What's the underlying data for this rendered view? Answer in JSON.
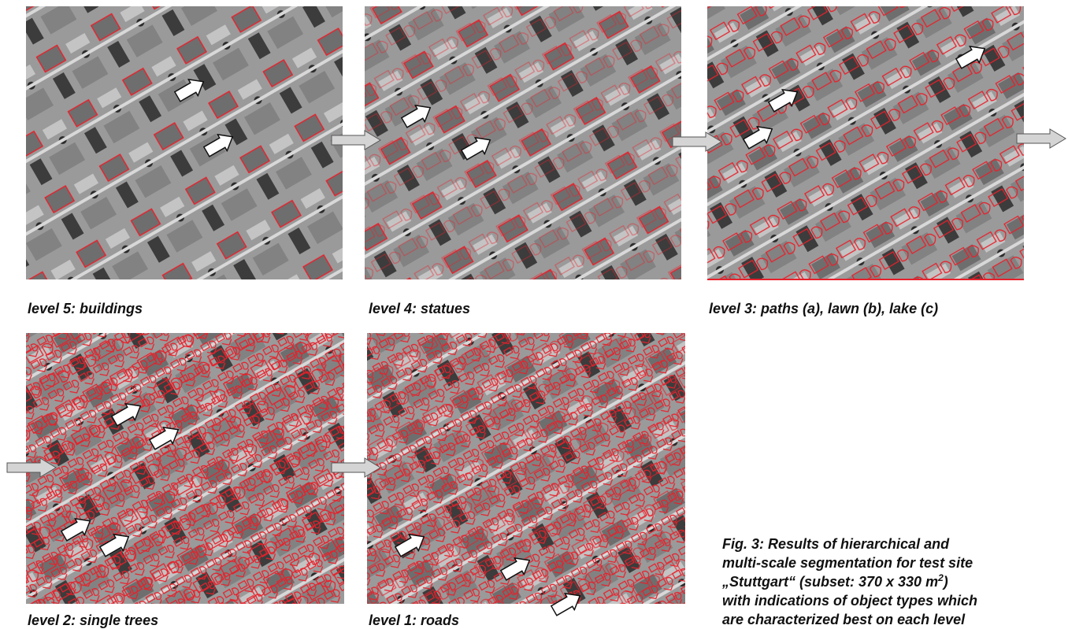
{
  "panels": [
    {
      "caption": "level 5: buildings"
    },
    {
      "caption": "level 4: statues"
    },
    {
      "caption": "level 3: paths (a), lawn (b), lake (c)"
    },
    {
      "caption": "level 2: single trees"
    },
    {
      "caption": "level 1: roads"
    }
  ],
  "figure_caption": {
    "lines": [
      "Fig. 3: Results of hierarchical and",
      "multi-scale segmentation for test site",
      {
        "text": "„Stuttgart“ (subset: 370 x 330 m",
        "superscript": "2",
        "after": ")"
      },
      "with indications of object types which",
      "are characterized best on each level"
    ]
  }
}
